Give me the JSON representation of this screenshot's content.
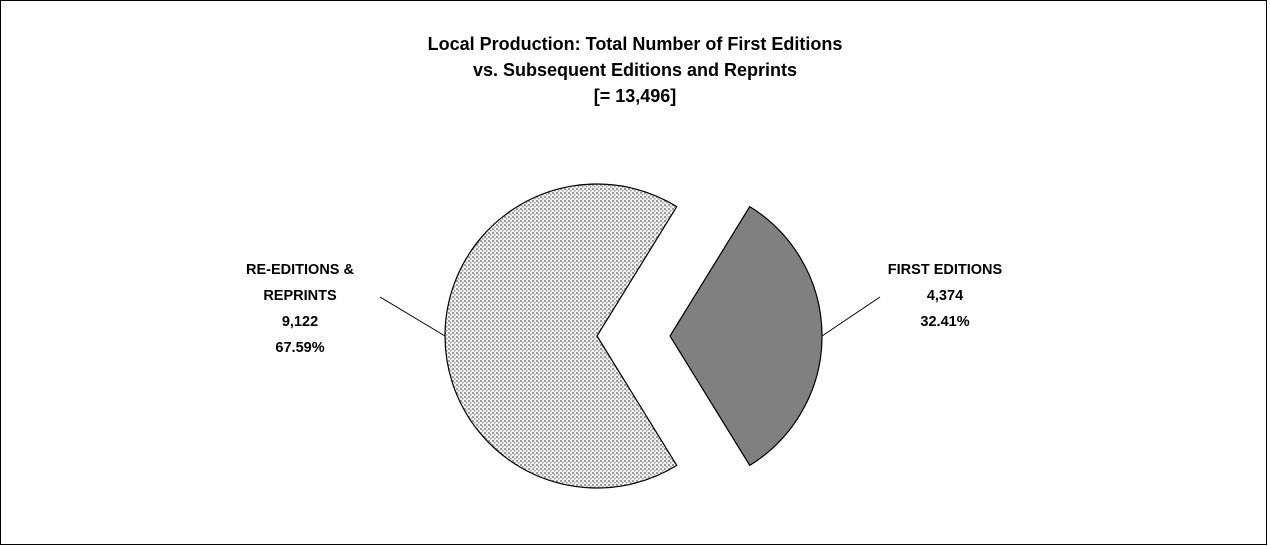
{
  "chart_data": {
    "type": "pie",
    "title": [
      "Local Production: Total Number of First Editions",
      "vs. Subsequent Editions and Reprints"
    ],
    "subtitle": "[= 13,496]",
    "categories": [
      "FIRST EDITIONS",
      "RE-EDITIONS & REPRINTS"
    ],
    "values": [
      4374,
      9122
    ],
    "value_labels": [
      "4,374",
      "9,122"
    ],
    "percents": [
      32.41,
      67.59
    ],
    "percent_labels": [
      "32.41%",
      "67.59%"
    ],
    "colors": [
      "#808080",
      "#9a9a9a"
    ],
    "exploded": [
      true,
      false
    ]
  }
}
